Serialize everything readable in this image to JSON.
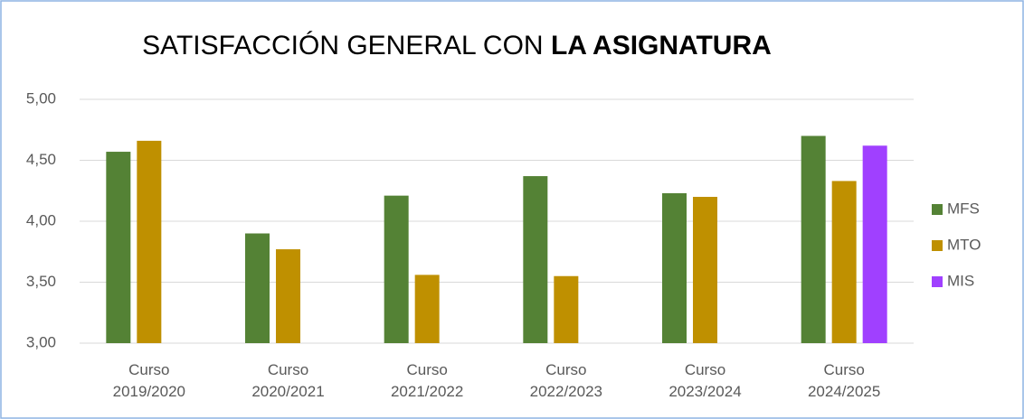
{
  "chart_data": {
    "type": "bar",
    "title": [
      "SATISFACCIÓN GENERAL CON",
      "LA ASIGNATURA"
    ],
    "categories": [
      "Curso 2019/2020",
      "Curso 2020/2021",
      "Curso 2021/2022",
      "Curso 2022/2023",
      "Curso 2023/2024",
      "Curso 2024/2025"
    ],
    "series": [
      {
        "name": "MFS",
        "color": "#548235",
        "values": [
          4.57,
          3.9,
          4.21,
          4.37,
          4.23,
          4.7
        ]
      },
      {
        "name": "MTO",
        "color": "#bf9000",
        "values": [
          4.66,
          3.77,
          3.56,
          3.55,
          4.2,
          4.33
        ]
      },
      {
        "name": "MIS",
        "color": "#a040ff",
        "values": [
          null,
          null,
          null,
          null,
          null,
          4.62
        ]
      }
    ],
    "ylim": [
      3,
      5
    ],
    "yticks": [
      {
        "value": 3,
        "label": "3,00"
      },
      {
        "value": 3.5,
        "label": "3,50"
      },
      {
        "value": 4,
        "label": "4,00"
      },
      {
        "value": 4.5,
        "label": "4,50"
      },
      {
        "value": 5,
        "label": "5,00"
      }
    ],
    "grid": true,
    "legend": "right"
  }
}
